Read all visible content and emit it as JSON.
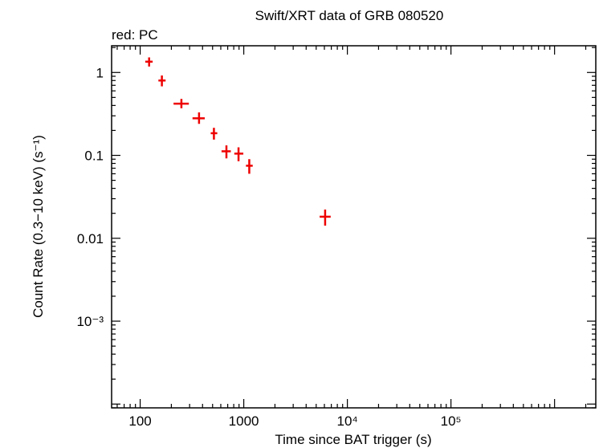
{
  "chart_data": {
    "type": "scatter",
    "title": "Swift/XRT data of GRB 080520",
    "subtitle": "red: PC",
    "xlabel": "Time since BAT trigger (s)",
    "ylabel": "Count Rate (0.3−10 keV) (s⁻¹)",
    "xscale": "log",
    "yscale": "log",
    "xlim": [
      53,
      2500000
    ],
    "ylim": [
      9e-05,
      2.1
    ],
    "grid": false,
    "x_ticks": [
      {
        "value": 100,
        "label": "100"
      },
      {
        "value": 1000,
        "label": "1000"
      },
      {
        "value": 10000,
        "label": "10⁴"
      },
      {
        "value": 100000,
        "label": "10⁵"
      }
    ],
    "y_ticks": [
      {
        "value": 1,
        "label": "1"
      },
      {
        "value": 0.1,
        "label": "0.1"
      },
      {
        "value": 0.01,
        "label": "0.01"
      },
      {
        "value": 0.001,
        "label": "10⁻³"
      }
    ],
    "series": [
      {
        "color": "#ee0000",
        "points": [
          {
            "x": 122,
            "y": 1.35,
            "xerr": [
              10,
              10
            ],
            "yerr": [
              0.17,
              0.17
            ]
          },
          {
            "x": 162,
            "y": 0.8,
            "xerr": [
              12,
              14
            ],
            "yerr": [
              0.12,
              0.12
            ]
          },
          {
            "x": 250,
            "y": 0.42,
            "xerr": [
              40,
              45
            ],
            "yerr": [
              0.05,
              0.06
            ]
          },
          {
            "x": 370,
            "y": 0.28,
            "xerr": [
              50,
              50
            ],
            "yerr": [
              0.04,
              0.05
            ]
          },
          {
            "x": 515,
            "y": 0.185,
            "xerr": [
              35,
              40
            ],
            "yerr": [
              0.03,
              0.03
            ]
          },
          {
            "x": 680,
            "y": 0.112,
            "xerr": [
              70,
              70
            ],
            "yerr": [
              0.02,
              0.02
            ]
          },
          {
            "x": 890,
            "y": 0.105,
            "xerr": [
              80,
              100
            ],
            "yerr": [
              0.02,
              0.02
            ]
          },
          {
            "x": 1130,
            "y": 0.075,
            "xerr": [
              80,
              90
            ],
            "yerr": [
              0.015,
              0.015
            ]
          },
          {
            "x": 6100,
            "y": 0.0182,
            "xerr": [
              700,
              800
            ],
            "yerr": [
              0.004,
              0.004
            ]
          }
        ]
      }
    ]
  }
}
